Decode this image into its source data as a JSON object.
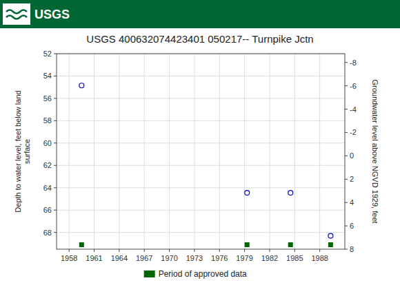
{
  "chart_data": {
    "type": "scatter",
    "title": "USGS 400632074423401 050217-- Turnpike Jctn",
    "annotations": [
      "USGS"
    ],
    "y_label": "Depth to water level, feet below land\n surface",
    "y2_label": "Groundwater level above NGVD 1929, feet",
    "x": [
      1959.5,
      1979.3,
      1984.5,
      1989.3
    ],
    "series": [
      {
        "color": "#0000cc",
        "marker": "circle",
        "values": [
          54.85,
          64.45,
          64.45,
          68.3
        ]
      },
      {
        "name": "Period of approved data",
        "color": "#006600",
        "marker": "square",
        "values": [
          69.1,
          69.1,
          69.1,
          69.1
        ]
      }
    ],
    "xlim": [
      1956.5,
      1991.0
    ],
    "xticks": [
      1958,
      1961,
      1964,
      1967,
      1970,
      1973,
      1976,
      1979,
      1982,
      1985,
      1988
    ],
    "ylim": [
      69.5,
      52
    ],
    "yticks": [
      52,
      54,
      56,
      58,
      60,
      62,
      64,
      66,
      68
    ],
    "y2lim": [
      8,
      -8.75
    ],
    "y2ticks": [
      8,
      6,
      4,
      2,
      0,
      -2,
      -4,
      -6,
      -8
    ],
    "grid": true,
    "legend": "bottom"
  }
}
